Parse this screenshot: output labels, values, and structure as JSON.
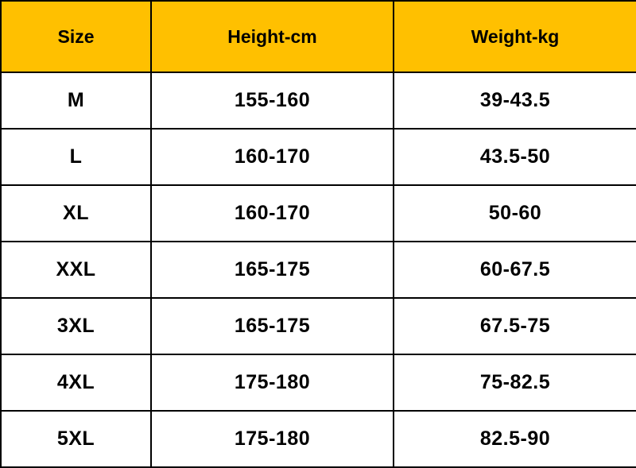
{
  "table": {
    "header": [
      "Size",
      "Height-cm",
      "Weight-kg"
    ],
    "rows": [
      [
        "M",
        "155-160",
        "39-43.5"
      ],
      [
        "L",
        "160-170",
        "43.5-50"
      ],
      [
        "XL",
        "160-170",
        "50-60"
      ],
      [
        "XXL",
        "165-175",
        "60-67.5"
      ],
      [
        "3XL",
        "165-175",
        "67.5-75"
      ],
      [
        "4XL",
        "175-180",
        "75-82.5"
      ],
      [
        "5XL",
        "175-180",
        "82.5-90"
      ]
    ]
  }
}
